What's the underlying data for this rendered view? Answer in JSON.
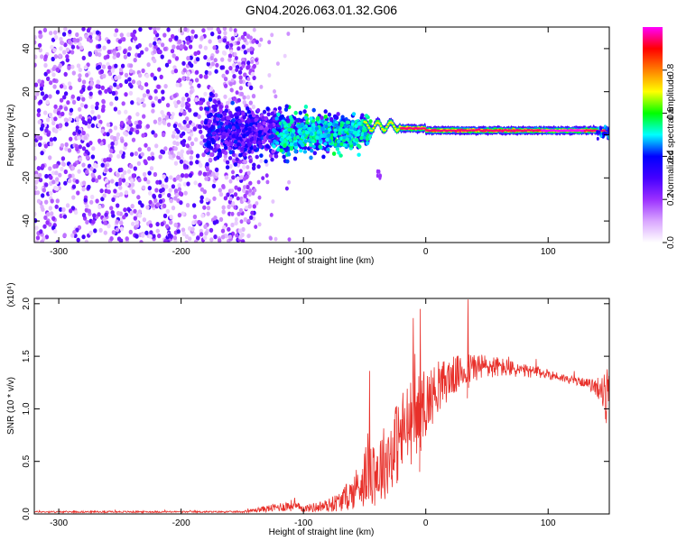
{
  "chart_data": [
    {
      "type": "heatmap",
      "title": "GN04.2026.063.01.32.G06",
      "xlabel": "Height of straight line (km)",
      "ylabel": "Frequency (Hz)",
      "xlim": [
        -320,
        150
      ],
      "ylim": [
        -50,
        50
      ],
      "xticks": [
        -300,
        -200,
        -100,
        0,
        100
      ],
      "yticks": [
        -40,
        -20,
        0,
        20,
        40
      ],
      "colorbar": {
        "label": "Normalized spectral amplitude",
        "range": [
          0.0,
          1.0
        ],
        "ticks": [
          0.0,
          0.2,
          0.4,
          0.6,
          0.8
        ],
        "tick_labels": [
          "0.0",
          "0.2",
          "0.4",
          "0.6",
          "0.8"
        ],
        "colors": [
          "#ffffff",
          "#d9a6ff",
          "#9b30ff",
          "#4400ff",
          "#0000ff",
          "#00ffff",
          "#00ff00",
          "#ffff00",
          "#ff7f00",
          "#ff0000",
          "#ff00ff"
        ]
      },
      "regions": [
        {
          "x_range": [
            -320,
            -140
          ],
          "freq_spread": 50,
          "amplitude": 0.1,
          "desc": "broad noise"
        },
        {
          "x_range": [
            -180,
            -50
          ],
          "freq_spread": 10,
          "amplitude": 0.35,
          "desc": "converging signal"
        },
        {
          "x_range": [
            -50,
            150
          ],
          "center_freq": 2,
          "freq_spread": 1.5,
          "amplitude": 0.95,
          "desc": "carrier line"
        },
        {
          "x_range": [
            -42,
            -38
          ],
          "center_freq": -21,
          "amplitude": 0.15,
          "desc": "isolated blob"
        }
      ]
    },
    {
      "type": "line",
      "xlabel": "Height of straight line (km)",
      "ylabel": "SNR (10 * v/v)",
      "scale_note": "(x10⁴)",
      "xlim": [
        -320,
        150
      ],
      "ylim": [
        0,
        2.05
      ],
      "xticks": [
        -300,
        -200,
        -100,
        0,
        100
      ],
      "yticks": [
        0.0,
        0.5,
        1.0,
        1.5,
        2.0
      ],
      "ytick_labels": [
        "0.0",
        "0.5",
        "1.0",
        "1.5",
        "2.0"
      ],
      "color": "#e8302a",
      "series": [
        {
          "name": "SNR",
          "envelope": {
            "x": [
              -320,
              -150,
              -130,
              -110,
              -100,
              -80,
              -70,
              -60,
              -50,
              -45,
              -40,
              -30,
              -20,
              -10,
              0,
              10,
              20,
              30,
              40,
              50,
              60,
              70,
              80,
              90,
              100,
              110,
              120,
              130,
              140,
              148
            ],
            "y": [
              0.02,
              0.02,
              0.05,
              0.08,
              0.05,
              0.08,
              0.12,
              0.2,
              0.35,
              0.5,
              0.4,
              0.55,
              0.75,
              0.9,
              1.05,
              1.2,
              1.3,
              1.35,
              1.4,
              1.4,
              1.4,
              1.38,
              1.36,
              1.35,
              1.33,
              1.3,
              1.27,
              1.25,
              1.2,
              1.1
            ],
            "noise": [
              0.01,
              0.01,
              0.04,
              0.07,
              0.04,
              0.08,
              0.12,
              0.2,
              0.35,
              0.5,
              0.45,
              0.45,
              0.55,
              0.5,
              0.4,
              0.3,
              0.25,
              0.2,
              0.18,
              0.15,
              0.12,
              0.1,
              0.08,
              0.07,
              0.06,
              0.05,
              0.05,
              0.05,
              0.1,
              0.35
            ]
          }
        }
      ]
    }
  ]
}
